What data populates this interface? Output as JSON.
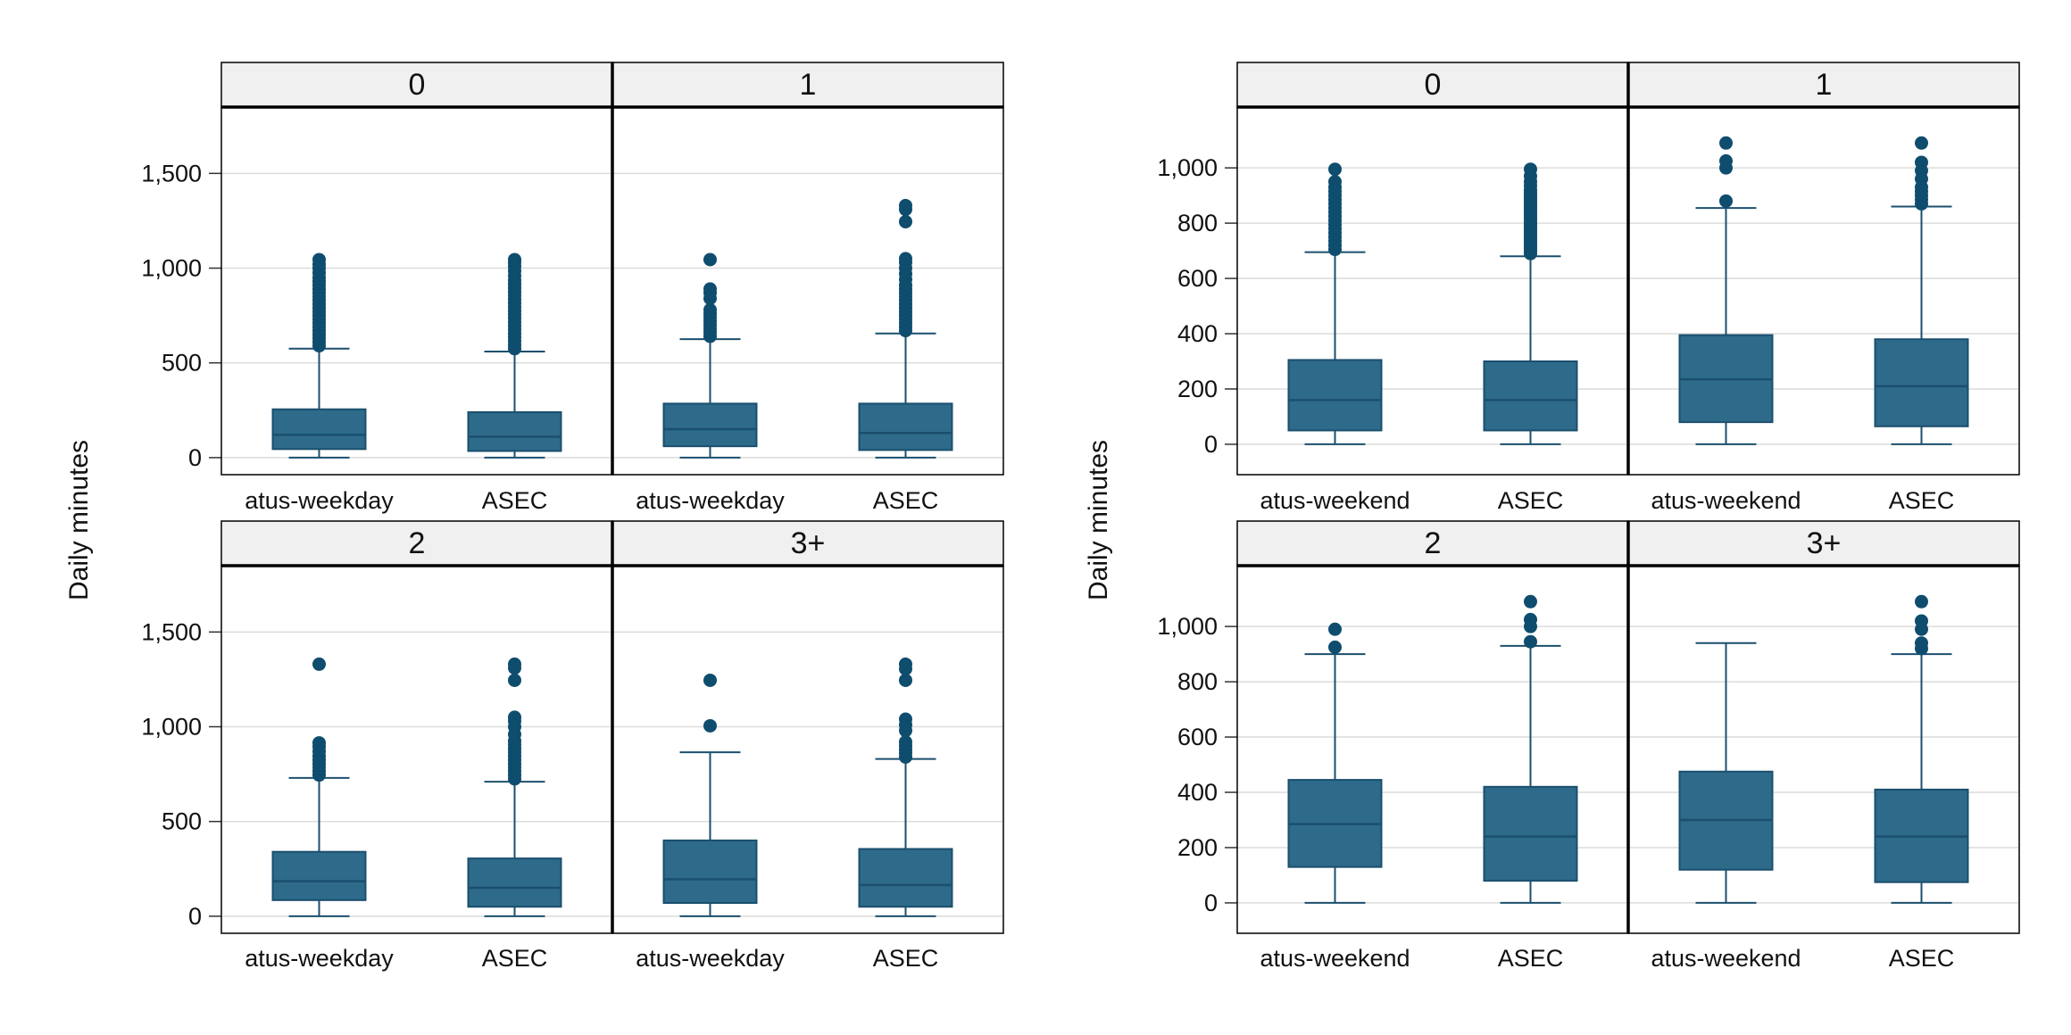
{
  "colors": {
    "box_fill": "#2e6a8a",
    "box_stroke": "#1b4f6e",
    "whisker": "#1b4f6e",
    "outlier": "#0f4d6e",
    "strip_bg": "#f0f0f0",
    "grid": "#dcdcdc",
    "frame": "#000000"
  },
  "chart_data": [
    {
      "type": "box",
      "panel": "left",
      "ylabel": "Daily minutes",
      "ylim": [
        -90,
        1850
      ],
      "yticks": [
        0,
        500,
        1000,
        1500
      ],
      "ytick_labels": [
        "0",
        "500",
        "1,000",
        "1,500"
      ],
      "grid": true,
      "facets": [
        {
          "strip": "0",
          "categories": [
            "atus-weekday",
            "ASEC"
          ],
          "boxes": [
            {
              "min": 0,
              "q1": 45,
              "median": 120,
              "q3": 255,
              "max": 575,
              "outliers": [
                590,
                610,
                630,
                650,
                670,
                690,
                710,
                730,
                750,
                770,
                790,
                810,
                830,
                850,
                870,
                890,
                910,
                930,
                950,
                975,
                1000,
                1020,
                1045
              ]
            },
            {
              "min": 0,
              "q1": 35,
              "median": 110,
              "q3": 240,
              "max": 560,
              "outliers": [
                575,
                595,
                615,
                635,
                655,
                675,
                695,
                715,
                735,
                755,
                775,
                795,
                815,
                835,
                855,
                875,
                895,
                915,
                935,
                960,
                985,
                1010,
                1030,
                1045
              ]
            }
          ]
        },
        {
          "strip": "1",
          "categories": [
            "atus-weekday",
            "ASEC"
          ],
          "boxes": [
            {
              "min": 0,
              "q1": 60,
              "median": 150,
              "q3": 285,
              "max": 625,
              "outliers": [
                640,
                660,
                680,
                700,
                720,
                740,
                760,
                780,
                840,
                870,
                890,
                1045
              ]
            },
            {
              "min": 0,
              "q1": 40,
              "median": 130,
              "q3": 285,
              "max": 655,
              "outliers": [
                670,
                690,
                710,
                730,
                750,
                770,
                790,
                810,
                830,
                850,
                870,
                890,
                910,
                940,
                970,
                1000,
                1030,
                1050,
                1245,
                1310,
                1330
              ]
            }
          ]
        },
        {
          "strip": "2",
          "categories": [
            "atus-weekday",
            "ASEC"
          ],
          "boxes": [
            {
              "min": 0,
              "q1": 85,
              "median": 185,
              "q3": 340,
              "max": 730,
              "outliers": [
                745,
                765,
                785,
                805,
                825,
                845,
                870,
                895,
                915,
                1330
              ]
            },
            {
              "min": 0,
              "q1": 50,
              "median": 150,
              "q3": 305,
              "max": 710,
              "outliers": [
                725,
                745,
                765,
                785,
                805,
                825,
                845,
                865,
                885,
                905,
                925,
                960,
                1000,
                1030,
                1050,
                1245,
                1310,
                1330
              ]
            }
          ]
        },
        {
          "strip": "3+",
          "categories": [
            "atus-weekday",
            "ASEC"
          ],
          "boxes": [
            {
              "min": 0,
              "q1": 70,
              "median": 195,
              "q3": 400,
              "max": 865,
              "outliers": [
                1005,
                1245
              ]
            },
            {
              "min": 0,
              "q1": 50,
              "median": 165,
              "q3": 355,
              "max": 830,
              "outliers": [
                840,
                860,
                880,
                900,
                920,
                980,
                1010,
                1040,
                1245,
                1305,
                1330
              ]
            }
          ]
        }
      ]
    },
    {
      "type": "box",
      "panel": "right",
      "ylabel": "Daily minutes",
      "ylim": [
        -110,
        1220
      ],
      "yticks": [
        0,
        200,
        400,
        600,
        800,
        1000
      ],
      "ytick_labels": [
        "0",
        "200",
        "400",
        "600",
        "800",
        "1,000"
      ],
      "grid": true,
      "facets": [
        {
          "strip": "0",
          "categories": [
            "atus-weekend",
            "ASEC"
          ],
          "boxes": [
            {
              "min": 0,
              "q1": 50,
              "median": 160,
              "q3": 305,
              "max": 695,
              "outliers": [
                705,
                720,
                735,
                750,
                765,
                780,
                795,
                810,
                825,
                840,
                855,
                870,
                885,
                900,
                915,
                930,
                950,
                995
              ]
            },
            {
              "min": 0,
              "q1": 50,
              "median": 160,
              "q3": 300,
              "max": 680,
              "outliers": [
                690,
                700,
                710,
                720,
                730,
                740,
                750,
                760,
                770,
                780,
                790,
                800,
                810,
                820,
                830,
                840,
                850,
                860,
                870,
                880,
                890,
                900,
                910,
                920,
                935,
                950,
                970,
                995
              ]
            }
          ]
        },
        {
          "strip": "1",
          "categories": [
            "atus-weekend",
            "ASEC"
          ],
          "boxes": [
            {
              "min": 0,
              "q1": 80,
              "median": 235,
              "q3": 395,
              "max": 855,
              "outliers": [
                880,
                1000,
                1025,
                1090
              ]
            },
            {
              "min": 0,
              "q1": 65,
              "median": 210,
              "q3": 380,
              "max": 860,
              "outliers": [
                870,
                885,
                900,
                915,
                930,
                960,
                990,
                1020,
                1090
              ]
            }
          ]
        },
        {
          "strip": "2",
          "categories": [
            "atus-weekend",
            "ASEC"
          ],
          "boxes": [
            {
              "min": 0,
              "q1": 130,
              "median": 285,
              "q3": 445,
              "max": 900,
              "outliers": [
                925,
                990
              ]
            },
            {
              "min": 0,
              "q1": 80,
              "median": 240,
              "q3": 420,
              "max": 930,
              "outliers": [
                945,
                1000,
                1025,
                1090
              ]
            }
          ]
        },
        {
          "strip": "3+",
          "categories": [
            "atus-weekend",
            "ASEC"
          ],
          "boxes": [
            {
              "min": 0,
              "q1": 120,
              "median": 300,
              "q3": 475,
              "max": 940,
              "outliers": []
            },
            {
              "min": 0,
              "q1": 75,
              "median": 240,
              "q3": 410,
              "max": 900,
              "outliers": [
                920,
                940,
                990,
                1020,
                1090
              ]
            }
          ]
        }
      ]
    }
  ]
}
